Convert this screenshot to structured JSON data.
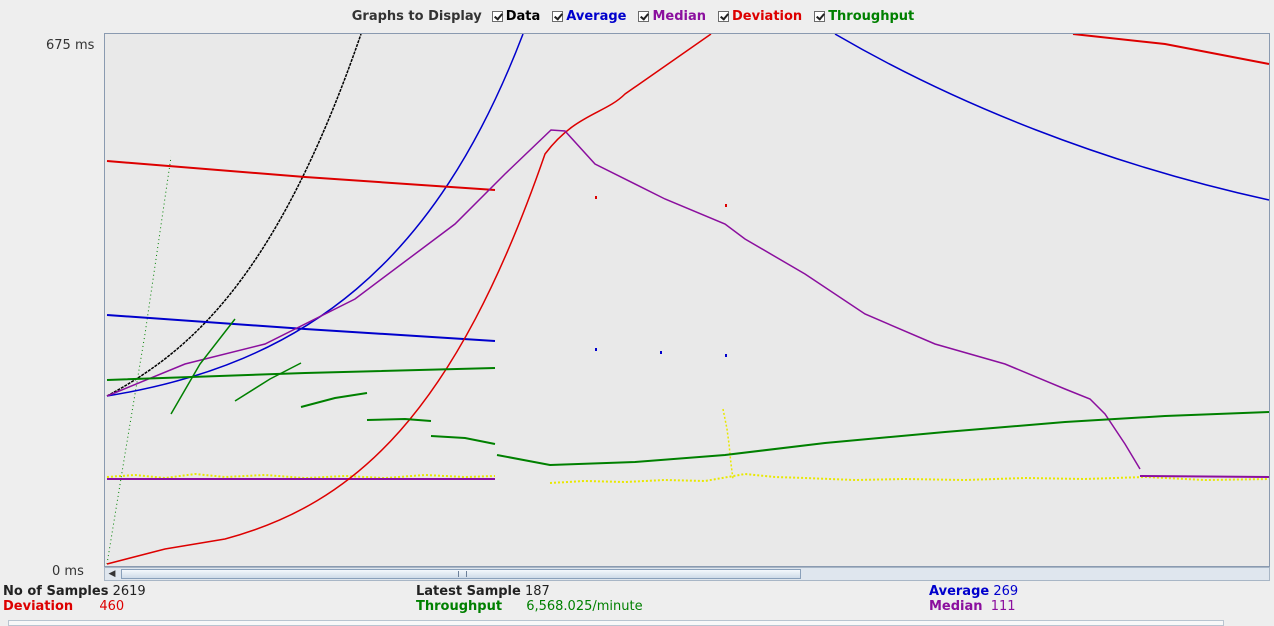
{
  "legend": {
    "title": "Graphs to Display",
    "items": [
      {
        "key": "data",
        "label": "Data",
        "color": "#000000",
        "checked": true
      },
      {
        "key": "average",
        "label": "Average",
        "color": "#0000cc",
        "checked": true
      },
      {
        "key": "median",
        "label": "Median",
        "color": "#8b0f9e",
        "checked": true
      },
      {
        "key": "deviation",
        "label": "Deviation",
        "color": "#dd0000",
        "checked": true
      },
      {
        "key": "throughput",
        "label": "Throughput",
        "color": "#008000",
        "checked": true
      }
    ]
  },
  "axis": {
    "y_max_label": "675  ms",
    "y_min_label": "0  ms"
  },
  "colors": {
    "data": "#000000",
    "average": "#0000cc",
    "median": "#8b0f9e",
    "deviation": "#dd0000",
    "throughput": "#008000",
    "samples": "#e8e800"
  },
  "stats": {
    "samples_label": "No of Samples",
    "samples_value": "2619",
    "deviation_label": "Deviation",
    "deviation_value": "460",
    "latest_label": "Latest Sample",
    "latest_value": "187",
    "throughput_label": "Throughput",
    "throughput_value": "6,568.025/minute",
    "average_label": "Average",
    "average_value": "269",
    "median_label": "Median",
    "median_value": "111"
  }
}
